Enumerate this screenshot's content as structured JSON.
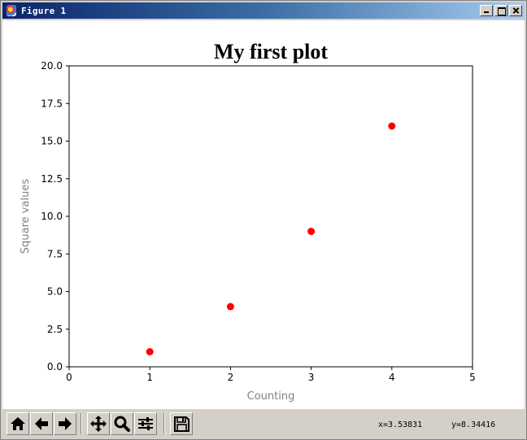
{
  "window": {
    "title": "Figure 1",
    "buttons": [
      "minimize",
      "maximize",
      "close"
    ]
  },
  "toolbar": {
    "buttons": [
      {
        "name": "home",
        "icon": "home-icon"
      },
      {
        "name": "back",
        "icon": "arrow-left-icon"
      },
      {
        "name": "forward",
        "icon": "arrow-right-icon"
      },
      {
        "name": "pan",
        "icon": "move-icon"
      },
      {
        "name": "zoom",
        "icon": "magnifier-icon"
      },
      {
        "name": "configure-subplots",
        "icon": "sliders-icon"
      },
      {
        "name": "save",
        "icon": "floppy-disk-icon"
      }
    ],
    "coord_x": "x=3.53831",
    "coord_y": "y=8.34416"
  },
  "chart_data": {
    "type": "scatter",
    "title": "My first plot",
    "xlabel": "Counting",
    "ylabel": "Square values",
    "xlim": [
      0,
      5
    ],
    "ylim": [
      0,
      20
    ],
    "xticks": [
      "0",
      "1",
      "2",
      "3",
      "4",
      "5"
    ],
    "yticks": [
      "0.0",
      "2.5",
      "5.0",
      "7.5",
      "10.0",
      "12.5",
      "15.0",
      "17.5",
      "20.0"
    ],
    "series": [
      {
        "x": [
          1,
          2,
          3,
          4
        ],
        "y": [
          1,
          4,
          9,
          16
        ],
        "color": "#ff0000",
        "marker": "o"
      }
    ],
    "grid": false,
    "label_color": "#808080"
  }
}
